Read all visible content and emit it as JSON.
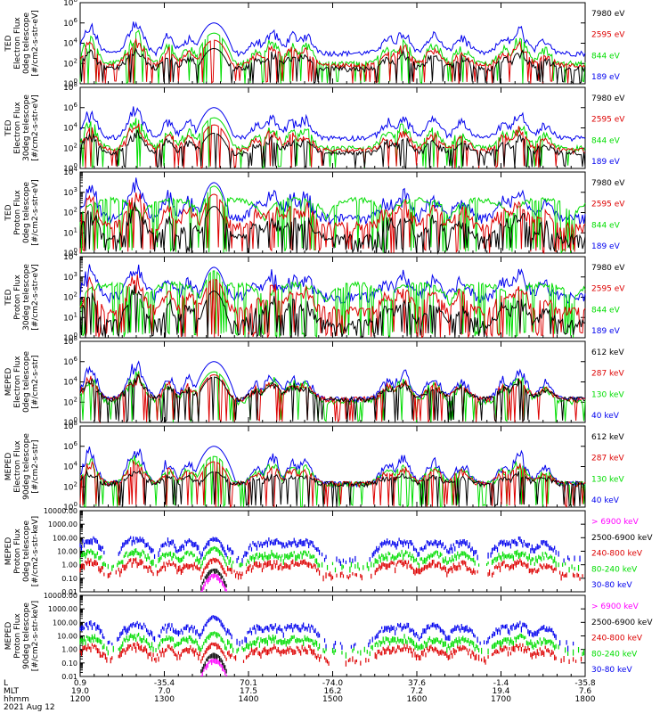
{
  "colors": {
    "black": "#000000",
    "red": "#dd0000",
    "green": "#00dd00",
    "blue": "#0000ee",
    "magenta": "#ff00ff"
  },
  "footer": {
    "labels": [
      "L",
      "MLT",
      "hhmm",
      "2021 Aug 12"
    ],
    "L_values": [
      "0.9",
      "-35.4",
      "70.1",
      "-74.0",
      "37.6",
      "-1.4",
      "-35.8"
    ],
    "MLT_values": [
      "19.0",
      "7.0",
      "17.5",
      "16.2",
      "7.2",
      "19.4",
      "7.6"
    ],
    "hhmm_values": [
      "1200",
      "1300",
      "1400",
      "1500",
      "1600",
      "1700",
      "1800"
    ]
  },
  "chart_data": [
    {
      "type": "line",
      "scale": "log",
      "ylabel": [
        "TED",
        "Electron Flux",
        "0deg telescope",
        "[#/cm2-s-str-eV]"
      ],
      "yticks": [
        "10^0",
        "10^2",
        "10^4",
        "10^6",
        "10^8"
      ],
      "ylim": [
        1,
        100000000
      ],
      "x_range": [
        "1200",
        "1800"
      ],
      "series": [
        {
          "name": "7980 eV",
          "color": "black",
          "base": 30,
          "peak": 3000
        },
        {
          "name": "2595 eV",
          "color": "red",
          "base": 60,
          "peak": 20000
        },
        {
          "name": "844 eV",
          "color": "green",
          "base": 100,
          "peak": 100000
        },
        {
          "name": "189 eV",
          "color": "blue",
          "base": 1000,
          "peak": 1000000
        }
      ]
    },
    {
      "type": "line",
      "scale": "log",
      "ylabel": [
        "TED",
        "Electron Flux",
        "30deg telescope",
        "[#/cm2-s-str-eV]"
      ],
      "yticks": [
        "10^0",
        "10^2",
        "10^4",
        "10^6",
        "10^8"
      ],
      "ylim": [
        1,
        100000000
      ],
      "x_range": [
        "1200",
        "1800"
      ],
      "series": [
        {
          "name": "7980 eV",
          "color": "black",
          "base": 30,
          "peak": 3000
        },
        {
          "name": "2595 eV",
          "color": "red",
          "base": 60,
          "peak": 20000
        },
        {
          "name": "844 eV",
          "color": "green",
          "base": 100,
          "peak": 100000
        },
        {
          "name": "189 eV",
          "color": "blue",
          "base": 1000,
          "peak": 1000000
        }
      ]
    },
    {
      "type": "line",
      "scale": "log",
      "ylabel": [
        "TED",
        "Proton Flux",
        "0deg telescope",
        "[#/cm2-s-str-eV]"
      ],
      "yticks": [
        "10^0",
        "10^1",
        "10^2",
        "10^3",
        "10^4"
      ],
      "ylim": [
        1,
        10000
      ],
      "x_range": [
        "1200",
        "1800"
      ],
      "series": [
        {
          "name": "7980 eV",
          "color": "black",
          "base": 5,
          "peak": 200
        },
        {
          "name": "2595 eV",
          "color": "red",
          "base": 20,
          "peak": 800
        },
        {
          "name": "844 eV",
          "color": "green",
          "base": 100,
          "peak": 2000
        },
        {
          "name": "189 eV",
          "color": "blue",
          "base": 50,
          "peak": 3000
        }
      ]
    },
    {
      "type": "line",
      "scale": "log",
      "ylabel": [
        "TED",
        "Proton Flux",
        "30deg telescope",
        "[#/cm2-s-str-eV]"
      ],
      "yticks": [
        "10^0",
        "10^1",
        "10^2",
        "10^3",
        "10^4"
      ],
      "ylim": [
        1,
        10000
      ],
      "x_range": [
        "1200",
        "1800"
      ],
      "series": [
        {
          "name": "7980 eV",
          "color": "black",
          "base": 5,
          "peak": 200
        },
        {
          "name": "2595 eV",
          "color": "red",
          "base": 20,
          "peak": 800
        },
        {
          "name": "844 eV",
          "color": "green",
          "base": 100,
          "peak": 2000
        },
        {
          "name": "189 eV",
          "color": "blue",
          "base": 100,
          "peak": 3000
        }
      ]
    },
    {
      "type": "line",
      "scale": "log",
      "ylabel": [
        "MEPED",
        "Electron Flux",
        "0deg telescope",
        "[#/cm2-s-str]"
      ],
      "yticks": [
        "10^0",
        "10^2",
        "10^4",
        "10^6",
        "10^8"
      ],
      "ylim": [
        1,
        100000000
      ],
      "x_range": [
        "1200",
        "1800"
      ],
      "series": [
        {
          "name": "612 keV",
          "color": "black",
          "base": 200,
          "peak": 30000
        },
        {
          "name": "287 keV",
          "color": "red",
          "base": 200,
          "peak": 50000
        },
        {
          "name": "130 keV",
          "color": "green",
          "base": 100,
          "peak": 100000
        },
        {
          "name": "40 keV",
          "color": "blue",
          "base": 200,
          "peak": 1000000
        }
      ]
    },
    {
      "type": "line",
      "scale": "log",
      "ylabel": [
        "MEPED",
        "Electron Flux",
        "90deg telescope",
        "[#/cm2-s-str]"
      ],
      "yticks": [
        "10^0",
        "10^2",
        "10^4",
        "10^6",
        "10^8"
      ],
      "ylim": [
        1,
        100000000
      ],
      "x_range": [
        "1200",
        "1800"
      ],
      "series": [
        {
          "name": "612 keV",
          "color": "black",
          "base": 200,
          "peak": 3000
        },
        {
          "name": "287 keV",
          "color": "red",
          "base": 200,
          "peak": 30000
        },
        {
          "name": "130 keV",
          "color": "green",
          "base": 200,
          "peak": 100000
        },
        {
          "name": "40 keV",
          "color": "blue",
          "base": 200,
          "peak": 1000000
        }
      ]
    },
    {
      "type": "line",
      "scale": "log",
      "ylabel": [
        "MEPED",
        "Proton Flux",
        "0deg telescope",
        "[#/cm2-s-str-keV]"
      ],
      "yticks": [
        "0.01",
        "0.10",
        "1.00",
        "10.00",
        "100.00",
        "1000.00",
        "10000.00"
      ],
      "ylim": [
        0.01,
        10000
      ],
      "x_range": [
        "1200",
        "1800"
      ],
      "series": [
        {
          "name": "> 6900 keV",
          "color": "magenta",
          "base": 0,
          "peak": 0.2
        },
        {
          "name": "2500-6900 keV",
          "color": "black",
          "base": 0,
          "peak": 0.5
        },
        {
          "name": "240-800 keV",
          "color": "red",
          "base": 0.2,
          "peak": 3
        },
        {
          "name": "80-240 keV",
          "color": "green",
          "base": 1,
          "peak": 20
        },
        {
          "name": "30-80 keV",
          "color": "blue",
          "base": 3,
          "peak": 100
        }
      ]
    },
    {
      "type": "line",
      "scale": "log",
      "ylabel": [
        "MEPED",
        "Proton Flux",
        "90deg telescope",
        "[#/cm2-s-str-keV]"
      ],
      "yticks": [
        "0.01",
        "0.10",
        "1.00",
        "10.00",
        "100.00",
        "1000.00",
        "10000.00"
      ],
      "ylim": [
        0.01,
        10000
      ],
      "x_range": [
        "1200",
        "1800"
      ],
      "series": [
        {
          "name": "> 6900 keV",
          "color": "magenta",
          "base": 0,
          "peak": 0.2
        },
        {
          "name": "2500-6900 keV",
          "color": "black",
          "base": 0,
          "peak": 0.5
        },
        {
          "name": "240-800 keV",
          "color": "red",
          "base": 0.2,
          "peak": 3
        },
        {
          "name": "80-240 keV",
          "color": "green",
          "base": 1,
          "peak": 20
        },
        {
          "name": "30-80 keV",
          "color": "blue",
          "base": 3,
          "peak": 300
        }
      ]
    }
  ]
}
